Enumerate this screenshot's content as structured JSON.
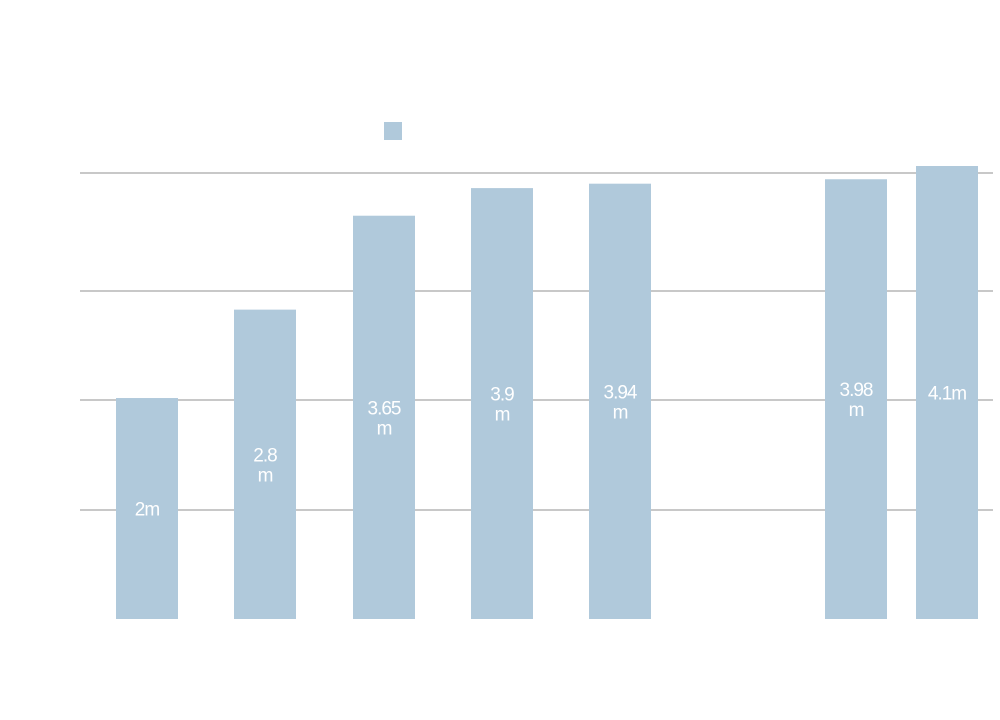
{
  "chart_data": {
    "type": "bar",
    "title": "",
    "xlabel": "",
    "ylabel": "",
    "categories": [
      "",
      "",
      "",
      "",
      "",
      "",
      ""
    ],
    "values": [
      2,
      2.8,
      3.65,
      3.9,
      3.94,
      3.98,
      4.1
    ],
    "data_labels": [
      [
        "2m"
      ],
      [
        "2.8",
        "m"
      ],
      [
        "3.65",
        "m"
      ],
      [
        "3.9",
        "m"
      ],
      [
        "3.94",
        "m"
      ],
      [
        "3.98",
        "m"
      ],
      [
        "4.1m"
      ]
    ],
    "ylim": [
      0,
      4.1
    ],
    "gridlines": true,
    "legend": {
      "position": "top-center",
      "entries": [
        ""
      ]
    },
    "colors": {
      "bar": "#b0c9db",
      "grid": "#c8c8c8",
      "label": "#ffffff"
    }
  }
}
